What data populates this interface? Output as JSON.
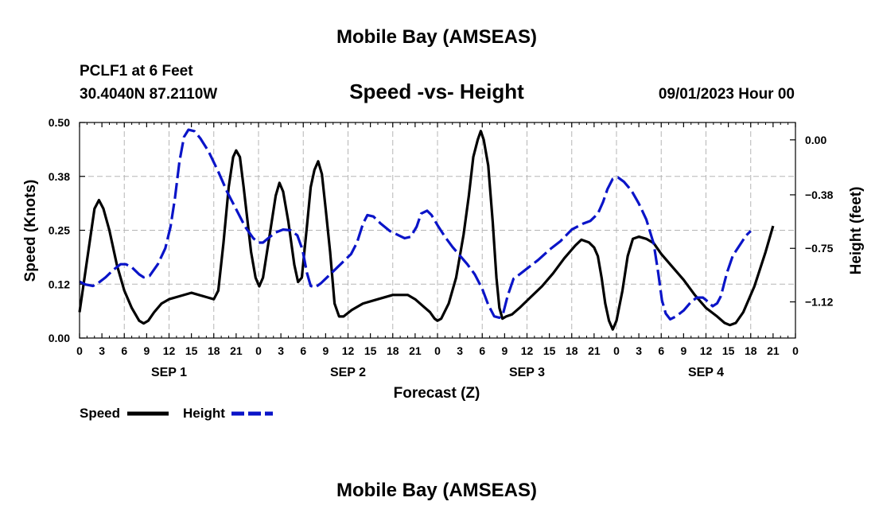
{
  "header": {
    "title": "Mobile Bay (AMSEAS)",
    "station": "PCLF1 at 6 Feet",
    "coords": "30.4040N  87.2110W",
    "subtitle": "Speed -vs- Height",
    "datetime": "09/01/2023 Hour 00"
  },
  "footer": {
    "title": "Mobile Bay (AMSEAS)"
  },
  "colors": {
    "speed": "#000000",
    "height": "#0a14c8",
    "grid": "#b5b5b5"
  },
  "chart_data": {
    "type": "line",
    "title": "Speed -vs- Height",
    "xlabel": "Forecast (Z)",
    "ylabel": "Speed (Knots)",
    "y2label": "Height (feet)",
    "xlim": [
      0,
      96
    ],
    "ylim": [
      0,
      0.5
    ],
    "y2lim": [
      -1.37,
      0.12
    ],
    "x_tick_labels": [
      "0",
      "3",
      "6",
      "9",
      "12",
      "15",
      "18",
      "21",
      "0",
      "3",
      "6",
      "9",
      "12",
      "15",
      "18",
      "21",
      "0",
      "3",
      "6",
      "9",
      "12",
      "15",
      "18",
      "21",
      "0",
      "3",
      "6",
      "9",
      "12",
      "15",
      "18",
      "21",
      "0"
    ],
    "day_labels": [
      {
        "label": "SEP 1",
        "x": 12
      },
      {
        "label": "SEP 2",
        "x": 36
      },
      {
        "label": "SEP 3",
        "x": 60
      },
      {
        "label": "SEP 4",
        "x": 84
      }
    ],
    "y_ticks": [
      "0.00",
      "0.12",
      "0.25",
      "0.38",
      "0.50"
    ],
    "y2_ticks": [
      "0.00",
      "−0.38",
      "−0.75",
      "−1.12"
    ],
    "y2_tick_values": [
      0.0,
      -0.38,
      -0.75,
      -1.12
    ],
    "grid": true,
    "legend_position": "bottom-left",
    "series": [
      {
        "name": "Speed",
        "axis": "left",
        "style": "solid",
        "points": [
          [
            0,
            0.06
          ],
          [
            1,
            0.18
          ],
          [
            2,
            0.3
          ],
          [
            2.6,
            0.32
          ],
          [
            3.2,
            0.3
          ],
          [
            4,
            0.25
          ],
          [
            5,
            0.17
          ],
          [
            6,
            0.11
          ],
          [
            7,
            0.07
          ],
          [
            8,
            0.04
          ],
          [
            8.6,
            0.034
          ],
          [
            9.2,
            0.04
          ],
          [
            10,
            0.06
          ],
          [
            11,
            0.08
          ],
          [
            12,
            0.09
          ],
          [
            13,
            0.095
          ],
          [
            15,
            0.105
          ],
          [
            16,
            0.1
          ],
          [
            17,
            0.095
          ],
          [
            18,
            0.09
          ],
          [
            18.6,
            0.11
          ],
          [
            19.3,
            0.22
          ],
          [
            20,
            0.35
          ],
          [
            20.6,
            0.42
          ],
          [
            21,
            0.435
          ],
          [
            21.5,
            0.42
          ],
          [
            22,
            0.35
          ],
          [
            23,
            0.2
          ],
          [
            23.6,
            0.14
          ],
          [
            24.1,
            0.12
          ],
          [
            24.6,
            0.14
          ],
          [
            25.5,
            0.24
          ],
          [
            26.3,
            0.33
          ],
          [
            26.8,
            0.36
          ],
          [
            27.3,
            0.34
          ],
          [
            28,
            0.27
          ],
          [
            28.8,
            0.17
          ],
          [
            29.3,
            0.13
          ],
          [
            29.8,
            0.14
          ],
          [
            30.5,
            0.26
          ],
          [
            31,
            0.35
          ],
          [
            31.5,
            0.39
          ],
          [
            32,
            0.41
          ],
          [
            32.5,
            0.38
          ],
          [
            33,
            0.3
          ],
          [
            33.6,
            0.2
          ],
          [
            34.2,
            0.08
          ],
          [
            34.8,
            0.05
          ],
          [
            35.4,
            0.05
          ],
          [
            36.5,
            0.065
          ],
          [
            38,
            0.08
          ],
          [
            40,
            0.09
          ],
          [
            42,
            0.1
          ],
          [
            44,
            0.1
          ],
          [
            45,
            0.09
          ],
          [
            46,
            0.075
          ],
          [
            47,
            0.06
          ],
          [
            47.6,
            0.045
          ],
          [
            48,
            0.04
          ],
          [
            48.5,
            0.045
          ],
          [
            49.5,
            0.08
          ],
          [
            50.5,
            0.14
          ],
          [
            51.5,
            0.24
          ],
          [
            52.2,
            0.33
          ],
          [
            52.8,
            0.42
          ],
          [
            53.4,
            0.46
          ],
          [
            53.8,
            0.48
          ],
          [
            54.2,
            0.46
          ],
          [
            54.8,
            0.4
          ],
          [
            55.4,
            0.27
          ],
          [
            55.9,
            0.14
          ],
          [
            56.3,
            0.07
          ],
          [
            56.7,
            0.045
          ],
          [
            57.2,
            0.05
          ],
          [
            58,
            0.055
          ],
          [
            59,
            0.07
          ],
          [
            60.5,
            0.095
          ],
          [
            62,
            0.12
          ],
          [
            63.5,
            0.15
          ],
          [
            65,
            0.185
          ],
          [
            66.5,
            0.215
          ],
          [
            67.3,
            0.228
          ],
          [
            68.3,
            0.222
          ],
          [
            69,
            0.21
          ],
          [
            69.5,
            0.19
          ],
          [
            70,
            0.14
          ],
          [
            70.5,
            0.08
          ],
          [
            71,
            0.04
          ],
          [
            71.5,
            0.02
          ],
          [
            72,
            0.04
          ],
          [
            72.8,
            0.11
          ],
          [
            73.5,
            0.19
          ],
          [
            74.2,
            0.23
          ],
          [
            75,
            0.235
          ],
          [
            76,
            0.23
          ],
          [
            77,
            0.22
          ],
          [
            78,
            0.195
          ],
          [
            79.5,
            0.165
          ],
          [
            81,
            0.135
          ],
          [
            82.5,
            0.1
          ],
          [
            84,
            0.07
          ],
          [
            85.5,
            0.05
          ],
          [
            86.5,
            0.035
          ],
          [
            87.2,
            0.03
          ],
          [
            88,
            0.035
          ],
          [
            89,
            0.06
          ],
          [
            90.5,
            0.12
          ],
          [
            92,
            0.2
          ],
          [
            93,
            0.26
          ]
        ]
      },
      {
        "name": "Height",
        "axis": "right",
        "style": "dashed",
        "points": [
          [
            0,
            -0.98
          ],
          [
            0.8,
            -1.0
          ],
          [
            1.8,
            -1.01
          ],
          [
            2.5,
            -0.99
          ],
          [
            3.5,
            -0.95
          ],
          [
            4.5,
            -0.9
          ],
          [
            5.5,
            -0.86
          ],
          [
            6.2,
            -0.86
          ],
          [
            7,
            -0.88
          ],
          [
            8,
            -0.93
          ],
          [
            8.6,
            -0.95
          ],
          [
            9.4,
            -0.94
          ],
          [
            10.5,
            -0.86
          ],
          [
            11.5,
            -0.75
          ],
          [
            12.2,
            -0.6
          ],
          [
            12.8,
            -0.4
          ],
          [
            13.4,
            -0.15
          ],
          [
            14,
            0.02
          ],
          [
            14.6,
            0.07
          ],
          [
            15.4,
            0.06
          ],
          [
            16.2,
            0.01
          ],
          [
            17.3,
            -0.08
          ],
          [
            18.6,
            -0.22
          ],
          [
            19.8,
            -0.36
          ],
          [
            21,
            -0.48
          ],
          [
            22.2,
            -0.6
          ],
          [
            23.3,
            -0.68
          ],
          [
            24,
            -0.71
          ],
          [
            24.6,
            -0.71
          ],
          [
            25.3,
            -0.68
          ],
          [
            26.3,
            -0.64
          ],
          [
            27.3,
            -0.62
          ],
          [
            28.3,
            -0.625
          ],
          [
            29.2,
            -0.66
          ],
          [
            29.9,
            -0.76
          ],
          [
            30.5,
            -0.92
          ],
          [
            31,
            -1.01
          ],
          [
            31.6,
            -1.02
          ],
          [
            32.4,
            -0.99
          ],
          [
            33.4,
            -0.94
          ],
          [
            34.4,
            -0.89
          ],
          [
            35.4,
            -0.84
          ],
          [
            36.4,
            -0.79
          ],
          [
            37.2,
            -0.71
          ],
          [
            38,
            -0.58
          ],
          [
            38.6,
            -0.52
          ],
          [
            39.4,
            -0.53
          ],
          [
            40.4,
            -0.58
          ],
          [
            41.6,
            -0.63
          ],
          [
            42.8,
            -0.66
          ],
          [
            43.6,
            -0.68
          ],
          [
            44.4,
            -0.67
          ],
          [
            45.2,
            -0.6
          ],
          [
            45.8,
            -0.51
          ],
          [
            46.6,
            -0.49
          ],
          [
            47.2,
            -0.52
          ],
          [
            48,
            -0.59
          ],
          [
            49,
            -0.67
          ],
          [
            50,
            -0.74
          ],
          [
            51,
            -0.8
          ],
          [
            52,
            -0.86
          ],
          [
            53,
            -0.93
          ],
          [
            54,
            -1.03
          ],
          [
            54.8,
            -1.14
          ],
          [
            55.6,
            -1.22
          ],
          [
            56.3,
            -1.23
          ],
          [
            56.8,
            -1.2
          ],
          [
            57.4,
            -1.08
          ],
          [
            58.2,
            -0.96
          ],
          [
            59,
            -0.93
          ],
          [
            60,
            -0.89
          ],
          [
            61.5,
            -0.83
          ],
          [
            63,
            -0.76
          ],
          [
            64.5,
            -0.7
          ],
          [
            66,
            -0.62
          ],
          [
            67.5,
            -0.58
          ],
          [
            68.5,
            -0.56
          ],
          [
            69.5,
            -0.51
          ],
          [
            70.2,
            -0.43
          ],
          [
            70.8,
            -0.34
          ],
          [
            71.5,
            -0.27
          ],
          [
            72.2,
            -0.26
          ],
          [
            73,
            -0.29
          ],
          [
            74,
            -0.35
          ],
          [
            75,
            -0.44
          ],
          [
            76,
            -0.55
          ],
          [
            77,
            -0.72
          ],
          [
            77.6,
            -0.92
          ],
          [
            78.1,
            -1.11
          ],
          [
            78.6,
            -1.2
          ],
          [
            79.2,
            -1.24
          ],
          [
            80,
            -1.22
          ],
          [
            81,
            -1.18
          ],
          [
            82,
            -1.12
          ],
          [
            82.8,
            -1.09
          ],
          [
            83.6,
            -1.09
          ],
          [
            84.3,
            -1.12
          ],
          [
            84.9,
            -1.15
          ],
          [
            85.5,
            -1.13
          ],
          [
            86,
            -1.08
          ],
          [
            86.8,
            -0.92
          ],
          [
            87.6,
            -0.8
          ],
          [
            88.5,
            -0.73
          ],
          [
            89.4,
            -0.66
          ],
          [
            90,
            -0.63
          ]
        ]
      }
    ],
    "legend": [
      {
        "label": "Speed",
        "style": "solid"
      },
      {
        "label": "Height",
        "style": "dashed"
      }
    ]
  }
}
